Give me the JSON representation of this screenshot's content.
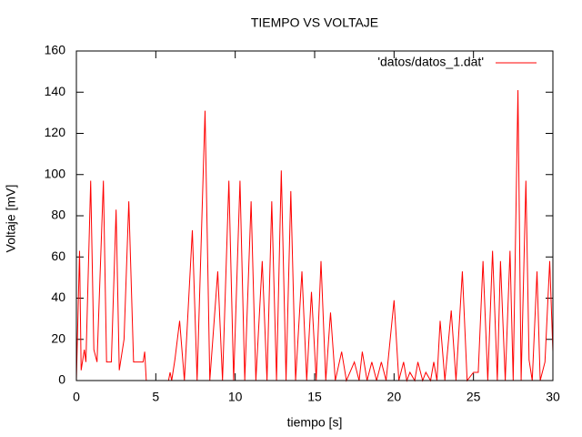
{
  "chart_data": {
    "type": "line",
    "title": "TIEMPO VS VOLTAJE",
    "x_label": "tiempo [s]",
    "y_label": "Voltaje [mV]",
    "x": [
      0,
      0.2,
      0.3,
      0.5,
      0.6,
      0.9,
      1.1,
      1.3,
      1.7,
      1.9,
      2.2,
      2.5,
      2.7,
      3.0,
      3.3,
      3.6,
      4.2,
      4.3,
      4.4,
      5.8,
      5.9,
      6.0,
      6.2,
      6.5,
      6.8,
      7.3,
      7.6,
      8.1,
      8.4,
      8.9,
      9.2,
      9.6,
      9.9,
      10.3,
      10.6,
      11.0,
      11.3,
      11.7,
      12.0,
      12.3,
      12.6,
      12.9,
      13.2,
      13.5,
      13.8,
      14.2,
      14.5,
      14.8,
      15.1,
      15.4,
      15.7,
      16.0,
      16.3,
      16.7,
      17.0,
      17.5,
      17.8,
      18.0,
      18.3,
      18.6,
      18.9,
      19.2,
      19.5,
      20.0,
      20.3,
      20.6,
      20.8,
      21.0,
      21.3,
      21.5,
      21.8,
      22.0,
      22.3,
      22.5,
      22.7,
      22.9,
      23.2,
      23.6,
      23.9,
      24.3,
      24.6,
      25.0,
      25.3,
      25.6,
      25.9,
      26.2,
      26.5,
      26.7,
      27.0,
      27.3,
      27.5,
      27.8,
      28.0,
      28.3,
      28.5,
      28.7,
      29.0,
      29.2,
      29.5,
      29.8,
      30
    ],
    "series": [
      {
        "name": "'datos/datos_1.dat'",
        "color": "#ff0000",
        "values": [
          0,
          63,
          5,
          15,
          9,
          97,
          15,
          9,
          97,
          9,
          9,
          83,
          5,
          20,
          87,
          9,
          9,
          14,
          0,
          0,
          4,
          0,
          10,
          29,
          0,
          73,
          0,
          131,
          0,
          53,
          0,
          97,
          0,
          97,
          0,
          87,
          0,
          58,
          0,
          87,
          0,
          102,
          0,
          92,
          0,
          53,
          0,
          43,
          0,
          58,
          0,
          33,
          0,
          14,
          0,
          9,
          0,
          14,
          0,
          9,
          0,
          9,
          0,
          39,
          0,
          9,
          0,
          4,
          0,
          9,
          0,
          4,
          0,
          9,
          0,
          29,
          0,
          34,
          0,
          53,
          0,
          4,
          4,
          58,
          0,
          63,
          0,
          58,
          0,
          63,
          0,
          141,
          0,
          97,
          10,
          0,
          53,
          0,
          9,
          58,
          14
        ]
      }
    ],
    "xlim": [
      0,
      30
    ],
    "xticks": [
      0,
      5,
      10,
      15,
      20,
      25,
      30
    ],
    "ylim": [
      0,
      160
    ],
    "yticks": [
      0,
      20,
      40,
      60,
      80,
      100,
      120,
      140,
      160
    ],
    "legend": "top-right"
  }
}
